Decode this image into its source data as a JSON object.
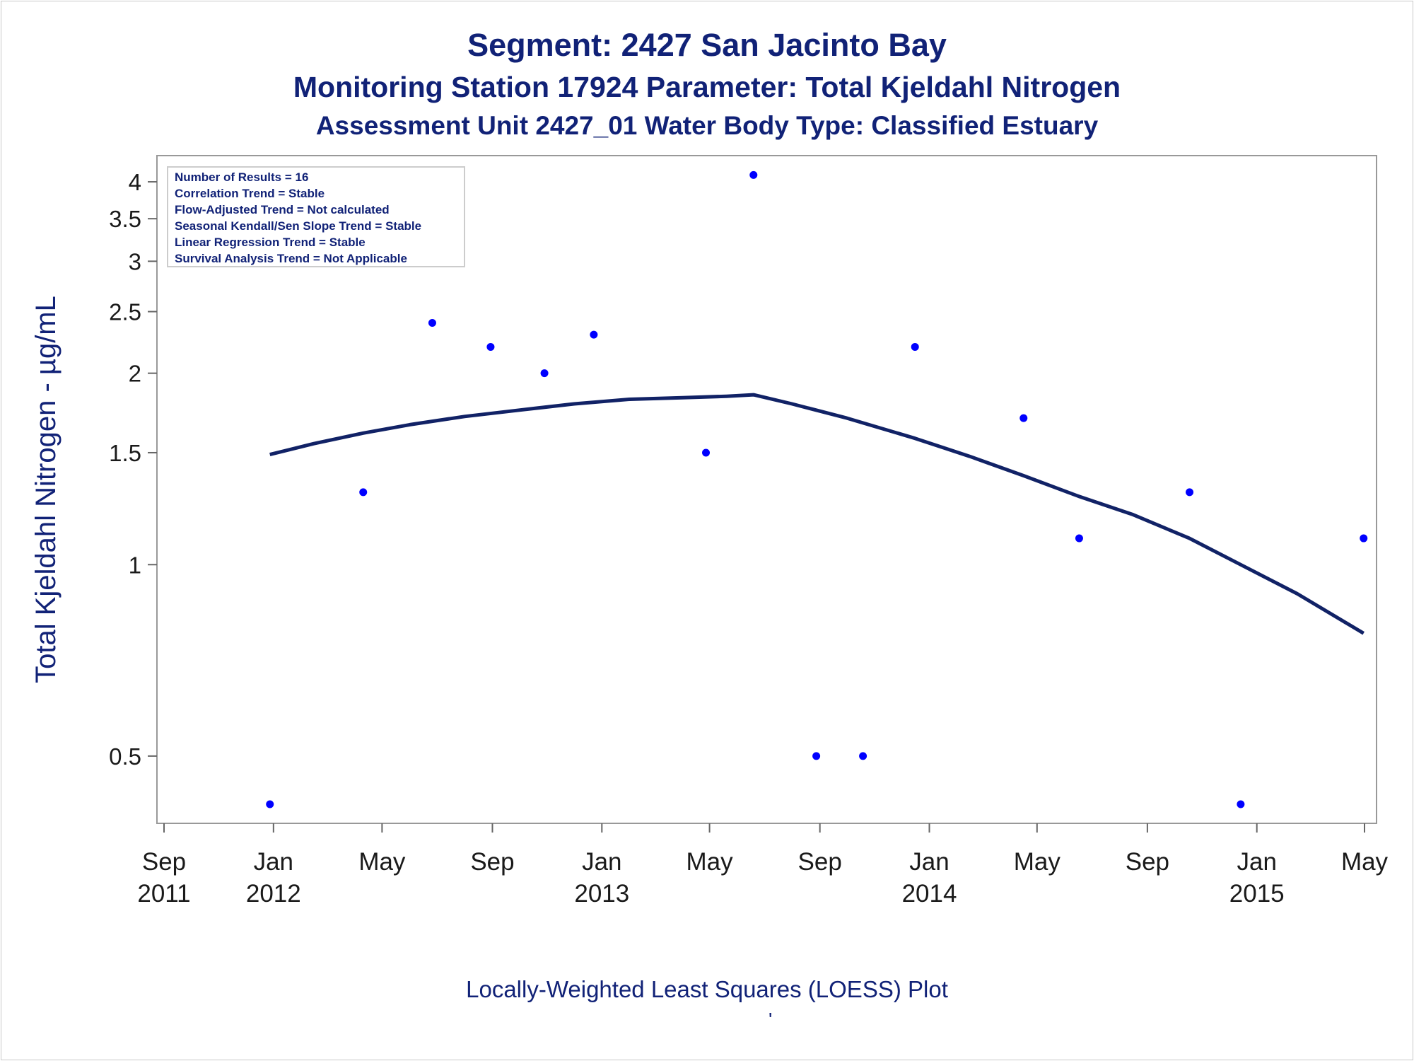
{
  "titles": {
    "line1": "Segment: 2427  San Jacinto Bay",
    "line2": "Monitoring Station 17924 Parameter: Total Kjeldahl Nitrogen",
    "line3": "Assessment Unit 2427_01   Water Body Type: Classified Estuary"
  },
  "footnote": "Locally-Weighted Least Squares (LOESS) Plot",
  "footnote_mark": "'",
  "colors": {
    "title": "#112277",
    "points": "#0000ff",
    "curve": "#112266",
    "frame": "#999999"
  },
  "chart_data": {
    "type": "scatter",
    "ylabel": "Total Kjeldahl Nitrogen -  µg/mL",
    "y_scale": "log",
    "ylim": [
      0.4,
      4.2
    ],
    "y_ticks": [
      0.5,
      1,
      1.5,
      2,
      2.5,
      3,
      3.5,
      4
    ],
    "xlim": [
      "2011-09-01",
      "2015-05-01"
    ],
    "x_ticks": [
      {
        "date": "2011-09-01",
        "month": "Sep",
        "year": "2011"
      },
      {
        "date": "2012-01-01",
        "month": "Jan",
        "year": "2012"
      },
      {
        "date": "2012-05-01",
        "month": "May",
        "year": ""
      },
      {
        "date": "2012-09-01",
        "month": "Sep",
        "year": ""
      },
      {
        "date": "2013-01-01",
        "month": "Jan",
        "year": "2013"
      },
      {
        "date": "2013-05-01",
        "month": "May",
        "year": ""
      },
      {
        "date": "2013-09-01",
        "month": "Sep",
        "year": ""
      },
      {
        "date": "2014-01-01",
        "month": "Jan",
        "year": "2014"
      },
      {
        "date": "2014-05-01",
        "month": "May",
        "year": ""
      },
      {
        "date": "2014-09-01",
        "month": "Sep",
        "year": ""
      },
      {
        "date": "2015-01-01",
        "month": "Jan",
        "year": "2015"
      },
      {
        "date": "2015-05-01",
        "month": "May",
        "year": ""
      }
    ],
    "points": [
      {
        "x": "2011-12-28",
        "y": 0.42
      },
      {
        "x": "2012-04-10",
        "y": 1.3
      },
      {
        "x": "2012-06-26",
        "y": 2.4
      },
      {
        "x": "2012-08-30",
        "y": 2.2
      },
      {
        "x": "2012-10-29",
        "y": 2.0
      },
      {
        "x": "2012-12-23",
        "y": 2.3
      },
      {
        "x": "2013-04-27",
        "y": 1.5
      },
      {
        "x": "2013-06-19",
        "y": 4.1
      },
      {
        "x": "2013-08-28",
        "y": 0.5
      },
      {
        "x": "2013-10-19",
        "y": 0.5
      },
      {
        "x": "2013-12-16",
        "y": 2.2
      },
      {
        "x": "2014-04-16",
        "y": 1.7
      },
      {
        "x": "2014-06-17",
        "y": 1.1
      },
      {
        "x": "2014-10-18",
        "y": 1.3
      },
      {
        "x": "2014-12-14",
        "y": 0.42
      },
      {
        "x": "2015-04-30",
        "y": 1.1
      }
    ],
    "loess": [
      {
        "x": "2011-12-28",
        "y": 1.49
      },
      {
        "x": "2012-02-15",
        "y": 1.55
      },
      {
        "x": "2012-04-10",
        "y": 1.61
      },
      {
        "x": "2012-06-01",
        "y": 1.66
      },
      {
        "x": "2012-08-01",
        "y": 1.71
      },
      {
        "x": "2012-10-01",
        "y": 1.75
      },
      {
        "x": "2012-12-01",
        "y": 1.79
      },
      {
        "x": "2013-02-01",
        "y": 1.82
      },
      {
        "x": "2013-04-01",
        "y": 1.83
      },
      {
        "x": "2013-05-20",
        "y": 1.84
      },
      {
        "x": "2013-06-19",
        "y": 1.85
      },
      {
        "x": "2013-08-01",
        "y": 1.79
      },
      {
        "x": "2013-10-01",
        "y": 1.7
      },
      {
        "x": "2013-12-16",
        "y": 1.58
      },
      {
        "x": "2014-02-15",
        "y": 1.48
      },
      {
        "x": "2014-04-16",
        "y": 1.38
      },
      {
        "x": "2014-06-17",
        "y": 1.28
      },
      {
        "x": "2014-08-15",
        "y": 1.2
      },
      {
        "x": "2014-10-18",
        "y": 1.1
      },
      {
        "x": "2014-12-14",
        "y": 1.0
      },
      {
        "x": "2015-02-15",
        "y": 0.9
      },
      {
        "x": "2015-04-30",
        "y": 0.78
      }
    ],
    "inset": {
      "lines": [
        "Number of Results = 16",
        "Correlation Trend = Stable",
        "Flow-Adjusted Trend = Not calculated",
        "Seasonal Kendall/Sen Slope Trend = Stable",
        "Linear Regression Trend = Stable",
        "Survival Analysis Trend = Not Applicable"
      ],
      "placement": "top-left"
    },
    "grid": false
  }
}
